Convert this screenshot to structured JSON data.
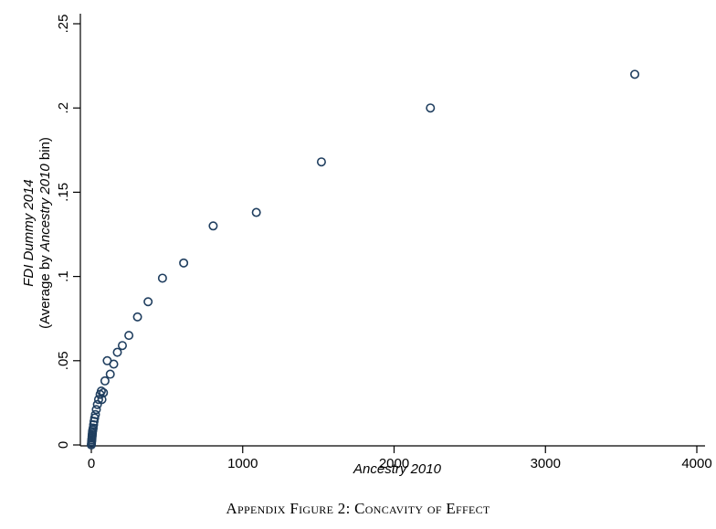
{
  "caption": "Appendix Figure 2: Concavity of Effect",
  "chart_data": {
    "type": "scatter",
    "title": "",
    "xlabel": "Ancestry 2010",
    "ylabel_line1": "FDI Dummy 2014",
    "ylabel_line2_parts": [
      "(Average by ",
      "Ancestry 2010",
      " bin)"
    ],
    "xlim": [
      0,
      4000
    ],
    "ylim": [
      0,
      0.25
    ],
    "x_ticks": [
      0,
      1000,
      2000,
      3000,
      4000
    ],
    "x_tick_labels": [
      "0",
      "1000",
      "2000",
      "3000",
      "4000"
    ],
    "y_ticks": [
      0,
      0.05,
      0.1,
      0.15,
      0.2,
      0.25
    ],
    "y_tick_labels": [
      "0",
      ".05",
      ".1",
      ".15",
      ".2",
      ".25"
    ],
    "grid": false,
    "marker_color": "#1f3e5f",
    "points": [
      {
        "x": 0,
        "y": 0.0
      },
      {
        "x": 1,
        "y": 0.001
      },
      {
        "x": 2,
        "y": 0.002
      },
      {
        "x": 3,
        "y": 0.003
      },
      {
        "x": 4,
        "y": 0.004
      },
      {
        "x": 5,
        "y": 0.005
      },
      {
        "x": 6,
        "y": 0.006
      },
      {
        "x": 7,
        "y": 0.007
      },
      {
        "x": 8,
        "y": 0.008
      },
      {
        "x": 10,
        "y": 0.009
      },
      {
        "x": 12,
        "y": 0.01
      },
      {
        "x": 15,
        "y": 0.012
      },
      {
        "x": 18,
        "y": 0.014
      },
      {
        "x": 22,
        "y": 0.016
      },
      {
        "x": 27,
        "y": 0.018
      },
      {
        "x": 33,
        "y": 0.021
      },
      {
        "x": 40,
        "y": 0.024
      },
      {
        "x": 48,
        "y": 0.027
      },
      {
        "x": 58,
        "y": 0.03
      },
      {
        "x": 66,
        "y": 0.032
      },
      {
        "x": 70,
        "y": 0.027
      },
      {
        "x": 80,
        "y": 0.031
      },
      {
        "x": 90,
        "y": 0.038
      },
      {
        "x": 105,
        "y": 0.05
      },
      {
        "x": 125,
        "y": 0.042
      },
      {
        "x": 148,
        "y": 0.048
      },
      {
        "x": 172,
        "y": 0.055
      },
      {
        "x": 205,
        "y": 0.059
      },
      {
        "x": 248,
        "y": 0.065
      },
      {
        "x": 305,
        "y": 0.076
      },
      {
        "x": 375,
        "y": 0.085
      },
      {
        "x": 470,
        "y": 0.099
      },
      {
        "x": 610,
        "y": 0.108
      },
      {
        "x": 805,
        "y": 0.13
      },
      {
        "x": 1090,
        "y": 0.138
      },
      {
        "x": 1520,
        "y": 0.168
      },
      {
        "x": 2240,
        "y": 0.2
      },
      {
        "x": 3590,
        "y": 0.22
      }
    ]
  }
}
